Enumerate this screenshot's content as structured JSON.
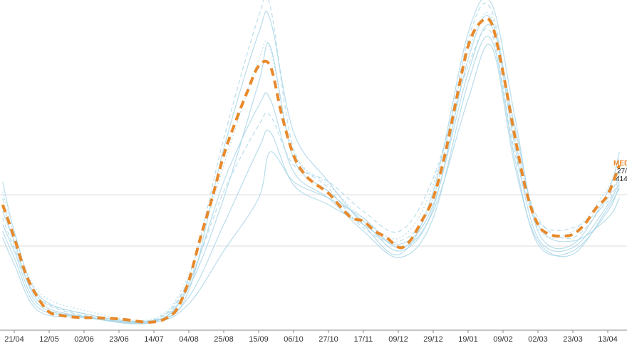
{
  "chart_data": {
    "type": "line",
    "x_ticks": [
      "21/04",
      "12/05",
      "02/06",
      "23/06",
      "14/07",
      "04/08",
      "25/08",
      "15/09",
      "06/10",
      "27/10",
      "17/11",
      "09/12",
      "29/12",
      "19/01",
      "09/02",
      "02/03",
      "23/03",
      "13/04"
    ],
    "grid": {
      "horizontal": true,
      "vertical": false
    },
    "colors": {
      "highlight": "#e8892b",
      "background_series": "#a8d4e6",
      "grid": "#dddddd",
      "axis": "#888888"
    },
    "highlight_series": {
      "name": "MED",
      "style": "dashed",
      "values": [
        [
          "14/04",
          0.62
        ],
        [
          "21/04",
          0.72
        ],
        [
          "28/04",
          0.83
        ],
        [
          "05/05",
          0.9
        ],
        [
          "12/05",
          0.945
        ],
        [
          "19/05",
          0.955
        ],
        [
          "26/05",
          0.96
        ],
        [
          "02/06",
          0.962
        ],
        [
          "09/06",
          0.962
        ],
        [
          "16/06",
          0.964
        ],
        [
          "23/06",
          0.966
        ],
        [
          "30/06",
          0.97
        ],
        [
          "07/07",
          0.975
        ],
        [
          "14/07",
          0.975
        ],
        [
          "21/07",
          0.965
        ],
        [
          "28/07",
          0.935
        ],
        [
          "04/08",
          0.85
        ],
        [
          "11/08",
          0.72
        ],
        [
          "18/08",
          0.6
        ],
        [
          "25/08",
          0.47
        ],
        [
          "01/09",
          0.37
        ],
        [
          "08/09",
          0.28
        ],
        [
          "15/09",
          0.2
        ],
        [
          "22/09",
          0.2
        ],
        [
          "29/09",
          0.35
        ],
        [
          "06/10",
          0.47
        ],
        [
          "13/10",
          0.53
        ],
        [
          "20/10",
          0.56
        ],
        [
          "27/10",
          0.585
        ],
        [
          "03/11",
          0.625
        ],
        [
          "10/11",
          0.66
        ],
        [
          "17/11",
          0.67
        ],
        [
          "24/11",
          0.7
        ],
        [
          "01/12",
          0.72
        ],
        [
          "09/12",
          0.75
        ],
        [
          "15/12",
          0.73
        ],
        [
          "22/12",
          0.67
        ],
        [
          "29/12",
          0.6
        ],
        [
          "05/01",
          0.47
        ],
        [
          "12/01",
          0.3
        ],
        [
          "19/01",
          0.14
        ],
        [
          "26/01",
          0.07
        ],
        [
          "02/02",
          0.07
        ],
        [
          "09/02",
          0.22
        ],
        [
          "16/02",
          0.41
        ],
        [
          "23/02",
          0.58
        ],
        [
          "02/03",
          0.68
        ],
        [
          "09/03",
          0.71
        ],
        [
          "16/03",
          0.715
        ],
        [
          "23/03",
          0.71
        ],
        [
          "30/03",
          0.68
        ],
        [
          "06/04",
          0.63
        ],
        [
          "13/04",
          0.59
        ],
        [
          "20/04",
          0.5
        ]
      ]
    },
    "background_series": [
      {
        "style": "solid",
        "values": [
          [
            "14/04",
            0.55
          ],
          [
            "21/04",
            0.7
          ],
          [
            "05/05",
            0.89
          ],
          [
            "02/06",
            0.95
          ],
          [
            "14/07",
            0.97
          ],
          [
            "04/08",
            0.88
          ],
          [
            "25/08",
            0.45
          ],
          [
            "15/09",
            0.1
          ],
          [
            "22/09",
            0.06
          ],
          [
            "06/10",
            0.4
          ],
          [
            "27/10",
            0.55
          ],
          [
            "17/11",
            0.68
          ],
          [
            "09/12",
            0.77
          ],
          [
            "29/12",
            0.58
          ],
          [
            "19/01",
            0.1
          ],
          [
            "02/02",
            0.01
          ],
          [
            "16/02",
            0.35
          ],
          [
            "02/03",
            0.7
          ],
          [
            "23/03",
            0.74
          ],
          [
            "13/04",
            0.58
          ],
          [
            "20/04",
            0.46
          ]
        ]
      },
      {
        "style": "solid",
        "values": [
          [
            "14/04",
            0.68
          ],
          [
            "21/04",
            0.76
          ],
          [
            "05/05",
            0.92
          ],
          [
            "02/06",
            0.96
          ],
          [
            "14/07",
            0.975
          ],
          [
            "04/08",
            0.86
          ],
          [
            "25/08",
            0.55
          ],
          [
            "15/09",
            0.32
          ],
          [
            "22/09",
            0.3
          ],
          [
            "06/10",
            0.52
          ],
          [
            "27/10",
            0.6
          ],
          [
            "17/11",
            0.7
          ],
          [
            "09/12",
            0.78
          ],
          [
            "29/12",
            0.66
          ],
          [
            "19/01",
            0.25
          ],
          [
            "02/02",
            0.12
          ],
          [
            "16/02",
            0.48
          ],
          [
            "02/03",
            0.74
          ],
          [
            "23/03",
            0.76
          ],
          [
            "13/04",
            0.64
          ],
          [
            "20/04",
            0.56
          ]
        ]
      },
      {
        "style": "dashed",
        "values": [
          [
            "14/04",
            0.6
          ],
          [
            "21/04",
            0.74
          ],
          [
            "05/05",
            0.9
          ],
          [
            "02/06",
            0.955
          ],
          [
            "14/07",
            0.97
          ],
          [
            "04/08",
            0.84
          ],
          [
            "25/08",
            0.42
          ],
          [
            "15/09",
            0.05
          ],
          [
            "22/09",
            0.02
          ],
          [
            "06/10",
            0.45
          ],
          [
            "27/10",
            0.57
          ],
          [
            "17/11",
            0.69
          ],
          [
            "09/12",
            0.73
          ],
          [
            "29/12",
            0.6
          ],
          [
            "19/01",
            0.12
          ],
          [
            "02/02",
            0.03
          ],
          [
            "16/02",
            0.42
          ],
          [
            "02/03",
            0.66
          ],
          [
            "23/03",
            0.72
          ],
          [
            "13/04",
            0.6
          ],
          [
            "20/04",
            0.52
          ]
        ]
      },
      {
        "style": "solid",
        "values": [
          [
            "14/04",
            0.64
          ],
          [
            "21/04",
            0.73
          ],
          [
            "05/05",
            0.91
          ],
          [
            "02/06",
            0.958
          ],
          [
            "14/07",
            0.972
          ],
          [
            "04/08",
            0.9
          ],
          [
            "25/08",
            0.68
          ],
          [
            "15/09",
            0.45
          ],
          [
            "22/09",
            0.4
          ],
          [
            "06/10",
            0.56
          ],
          [
            "27/10",
            0.62
          ],
          [
            "17/11",
            0.68
          ],
          [
            "09/12",
            0.74
          ],
          [
            "29/12",
            0.62
          ],
          [
            "19/01",
            0.22
          ],
          [
            "02/02",
            0.08
          ],
          [
            "16/02",
            0.38
          ],
          [
            "02/03",
            0.68
          ],
          [
            "23/03",
            0.73
          ],
          [
            "13/04",
            0.66
          ],
          [
            "20/04",
            0.6
          ]
        ]
      },
      {
        "style": "dotted",
        "values": [
          [
            "14/04",
            0.58
          ],
          [
            "21/04",
            0.71
          ],
          [
            "05/05",
            0.88
          ],
          [
            "02/06",
            0.94
          ],
          [
            "14/07",
            0.965
          ],
          [
            "04/08",
            0.83
          ],
          [
            "25/08",
            0.5
          ],
          [
            "15/09",
            0.18
          ],
          [
            "22/09",
            0.15
          ],
          [
            "06/10",
            0.46
          ],
          [
            "27/10",
            0.56
          ],
          [
            "17/11",
            0.66
          ],
          [
            "09/12",
            0.72
          ],
          [
            "29/12",
            0.56
          ],
          [
            "19/01",
            0.16
          ],
          [
            "02/02",
            0.05
          ],
          [
            "16/02",
            0.4
          ],
          [
            "02/03",
            0.69
          ],
          [
            "23/03",
            0.7
          ],
          [
            "13/04",
            0.57
          ],
          [
            "20/04",
            0.48
          ]
        ]
      },
      {
        "style": "solid",
        "values": [
          [
            "14/04",
            0.7
          ],
          [
            "21/04",
            0.78
          ],
          [
            "05/05",
            0.93
          ],
          [
            "02/06",
            0.96
          ],
          [
            "14/07",
            0.975
          ],
          [
            "04/08",
            0.87
          ],
          [
            "25/08",
            0.6
          ],
          [
            "15/09",
            0.25
          ],
          [
            "22/09",
            0.14
          ],
          [
            "06/10",
            0.48
          ],
          [
            "27/10",
            0.58
          ],
          [
            "17/11",
            0.67
          ],
          [
            "09/12",
            0.76
          ],
          [
            "29/12",
            0.63
          ],
          [
            "19/01",
            0.18
          ],
          [
            "02/02",
            0.06
          ],
          [
            "16/02",
            0.44
          ],
          [
            "02/03",
            0.72
          ],
          [
            "23/03",
            0.75
          ],
          [
            "13/04",
            0.62
          ],
          [
            "20/04",
            0.55
          ]
        ]
      },
      {
        "style": "dashed",
        "values": [
          [
            "14/04",
            0.66
          ],
          [
            "21/04",
            0.75
          ],
          [
            "05/05",
            0.9
          ],
          [
            "02/06",
            0.95
          ],
          [
            "14/07",
            0.968
          ],
          [
            "04/08",
            0.85
          ],
          [
            "25/08",
            0.58
          ],
          [
            "15/09",
            0.38
          ],
          [
            "22/09",
            0.35
          ],
          [
            "06/10",
            0.5
          ],
          [
            "27/10",
            0.55
          ],
          [
            "17/11",
            0.64
          ],
          [
            "09/12",
            0.7
          ],
          [
            "29/12",
            0.54
          ],
          [
            "19/01",
            0.2
          ],
          [
            "02/02",
            0.1
          ],
          [
            "16/02",
            0.46
          ],
          [
            "02/03",
            0.67
          ],
          [
            "23/03",
            0.69
          ],
          [
            "13/04",
            0.61
          ],
          [
            "20/04",
            0.53
          ]
        ]
      },
      {
        "style": "solid",
        "values": [
          [
            "14/04",
            0.72
          ],
          [
            "21/04",
            0.8
          ],
          [
            "05/05",
            0.94
          ],
          [
            "02/06",
            0.962
          ],
          [
            "14/07",
            0.976
          ],
          [
            "04/08",
            0.92
          ],
          [
            "25/08",
            0.76
          ],
          [
            "15/09",
            0.6
          ],
          [
            "22/09",
            0.46
          ],
          [
            "06/10",
            0.55
          ],
          [
            "27/10",
            0.6
          ],
          [
            "17/11",
            0.66
          ],
          [
            "09/12",
            0.75
          ],
          [
            "29/12",
            0.64
          ],
          [
            "19/01",
            0.3
          ],
          [
            "02/02",
            0.14
          ],
          [
            "16/02",
            0.5
          ],
          [
            "02/03",
            0.73
          ],
          [
            "23/03",
            0.77
          ],
          [
            "13/04",
            0.63
          ],
          [
            "20/04",
            0.57
          ]
        ]
      }
    ],
    "annotation": {
      "name": "MED",
      "lines": [
        "27/",
        "414"
      ]
    }
  }
}
